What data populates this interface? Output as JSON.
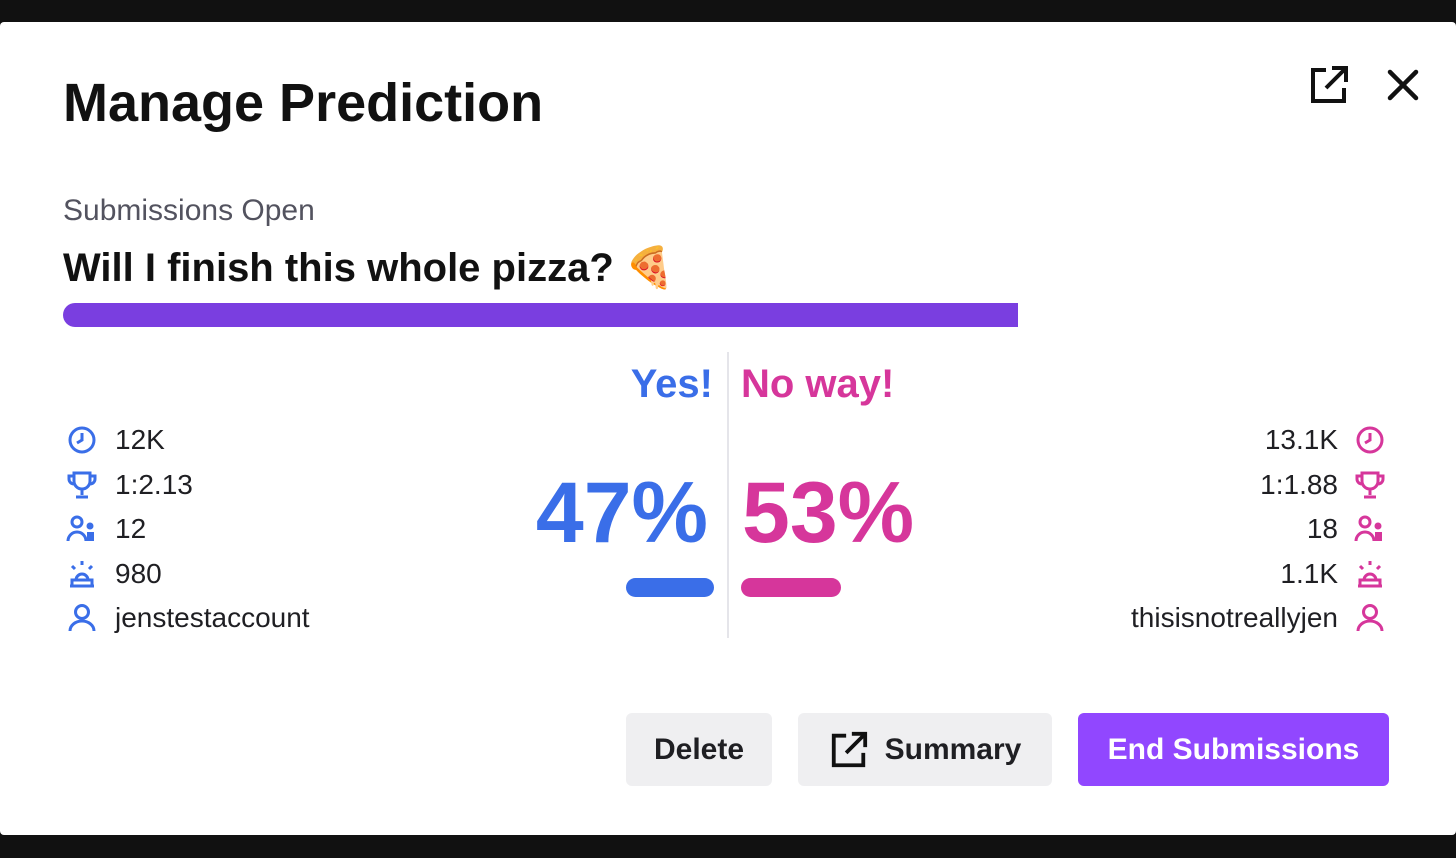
{
  "header": {
    "title": "Manage Prediction"
  },
  "status": "Submissions Open",
  "question": "Will I finish this whole pizza? 🍕",
  "outcomes": [
    {
      "name": "Yes!",
      "percent": "47%",
      "stats": [
        "12K",
        "1:2.13",
        "12",
        "980",
        "jenstestaccount"
      ]
    },
    {
      "name": "No way!",
      "percent": "53%",
      "stats": [
        "13.1K",
        "1:1.88",
        "18",
        "1.1K",
        "thisisnotreallyjen"
      ]
    }
  ],
  "buttons": [
    "Delete",
    "Summary",
    "End Submissions"
  ]
}
